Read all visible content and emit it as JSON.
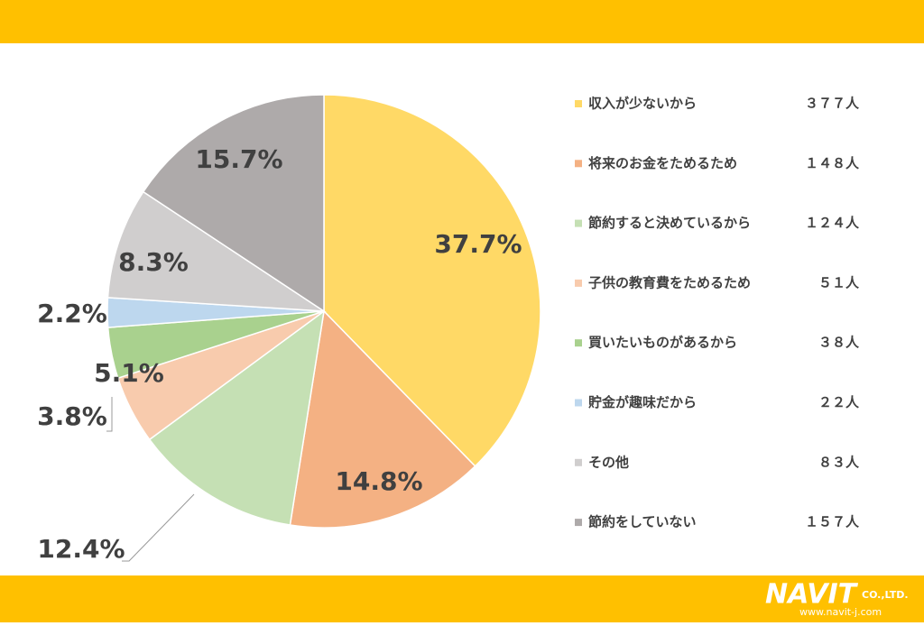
{
  "chart_data": {
    "type": "pie",
    "categories": [
      "収入が少ないから",
      "将来のお金をためるため",
      "節約すると決めているから",
      "子供の教育費をためるため",
      "買いたいものがあるから",
      "貯金が趣味だから",
      "その他",
      "節約をしていない"
    ],
    "values": [
      37.7,
      14.8,
      12.4,
      5.1,
      3.8,
      2.2,
      8.3,
      15.7
    ],
    "value_labels": [
      "37.7%",
      "14.8%",
      "12.4%",
      "5.1%",
      "3.8%",
      "2.2%",
      "8.3%",
      "15.7%"
    ],
    "count_labels": [
      "３７７人",
      "１４８人",
      "１２４人",
      "５１人",
      "３８人",
      "２２人",
      "８３人",
      "１５７人"
    ],
    "colors": [
      "#FFD966",
      "#F4B183",
      "#C5E0B4",
      "#F8CBAD",
      "#A9D18E",
      "#BDD7EE",
      "#D0CECE",
      "#AEAAAA"
    ]
  },
  "footer": {
    "logo": "NAVIT",
    "company": "CO.,LTD.",
    "url": "www.navit-j.com"
  }
}
